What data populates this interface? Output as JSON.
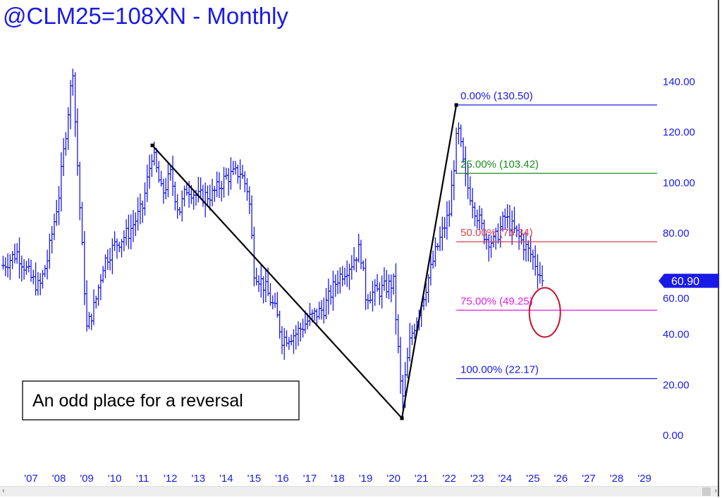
{
  "title": "@CLM25=108XN - Monthly",
  "annotation": "An odd place for a reversal",
  "last_price": "60.90",
  "colors": {
    "price": "#1a1ae6",
    "fib0": "#1a1ae6",
    "fib25": "#1a8a1a",
    "fib50": "#d8404f",
    "fib75": "#e020e0",
    "fib100": "#1a1ae6",
    "circle": "#c8102e",
    "trend": "#000000"
  },
  "chart_data": {
    "type": "ohlc",
    "title": "@CLM25=108XN - Monthly",
    "ylim": [
      -5,
      155
    ],
    "xlim": [
      2006.0,
      2029.7
    ],
    "y_ticks": [
      "0.00",
      "20.00",
      "40.00",
      "60.00",
      "80.00",
      "100.00",
      "120.00",
      "140.00"
    ],
    "y_tick_values": [
      0,
      20,
      40,
      60,
      80,
      100,
      120,
      140
    ],
    "x_ticks": [
      "'07",
      "'08",
      "'09",
      "'10",
      "'11",
      "'12",
      "'13",
      "'14",
      "'15",
      "'16",
      "'17",
      "'18",
      "'19",
      "'20",
      "'21",
      "'22",
      "'23",
      "'24",
      "'25",
      "'26",
      "'27",
      "'28",
      "'29"
    ],
    "x_tick_values": [
      2007,
      2008,
      2009,
      2010,
      2011,
      2012,
      2013,
      2014,
      2015,
      2016,
      2017,
      2018,
      2019,
      2020,
      2021,
      2022,
      2023,
      2024,
      2025,
      2026,
      2027,
      2028,
      2029
    ],
    "series_approx_close": {
      "t": [
        2006.0,
        2006.5,
        2007.0,
        2007.3,
        2007.6,
        2008.0,
        2008.3,
        2008.5,
        2008.6,
        2008.8,
        2009.0,
        2009.3,
        2009.6,
        2010.0,
        2010.5,
        2011.0,
        2011.35,
        2011.7,
        2012.0,
        2012.3,
        2012.6,
        2013.0,
        2013.5,
        2014.0,
        2014.5,
        2014.8,
        2015.0,
        2015.4,
        2015.8,
        2016.0,
        2016.5,
        2017.0,
        2017.5,
        2018.0,
        2018.5,
        2018.8,
        2019.0,
        2019.5,
        2020.0,
        2020.3,
        2020.6,
        2021.0,
        2021.5,
        2022.0,
        2022.3,
        2022.6,
        2022.9,
        2023.3,
        2023.6,
        2024.0,
        2024.5,
        2025.0,
        2025.35
      ],
      "close": [
        67,
        72,
        62,
        58,
        70,
        95,
        125,
        145,
        120,
        80,
        42,
        52,
        68,
        75,
        80,
        90,
        112,
        95,
        103,
        88,
        98,
        94,
        95,
        102,
        104,
        96,
        65,
        58,
        48,
        38,
        40,
        46,
        50,
        62,
        68,
        74,
        55,
        57,
        60,
        12,
        38,
        52,
        72,
        88,
        122,
        100,
        90,
        78,
        76,
        86,
        78,
        70,
        60.9
      ]
    },
    "trendlines": [
      {
        "from": [
          2011.35,
          114.5
        ],
        "to": [
          2020.3,
          6.5
        ]
      },
      {
        "from": [
          2020.3,
          6.5
        ],
        "to": [
          2022.25,
          130.5
        ]
      }
    ],
    "fib_levels": [
      {
        "label": "0.00% (130.50)",
        "value": 130.5
      },
      {
        "label": "25.00% (103.42)",
        "value": 103.42
      },
      {
        "label": "50.00% (76.34)",
        "value": 76.34
      },
      {
        "label": "75.00% (49.25)",
        "value": 49.25
      },
      {
        "label": "100.00% (22.17)",
        "value": 22.17
      }
    ],
    "fib_start": 2022.25,
    "highlight_circle": {
      "t": 2025.35,
      "value": 52
    }
  }
}
